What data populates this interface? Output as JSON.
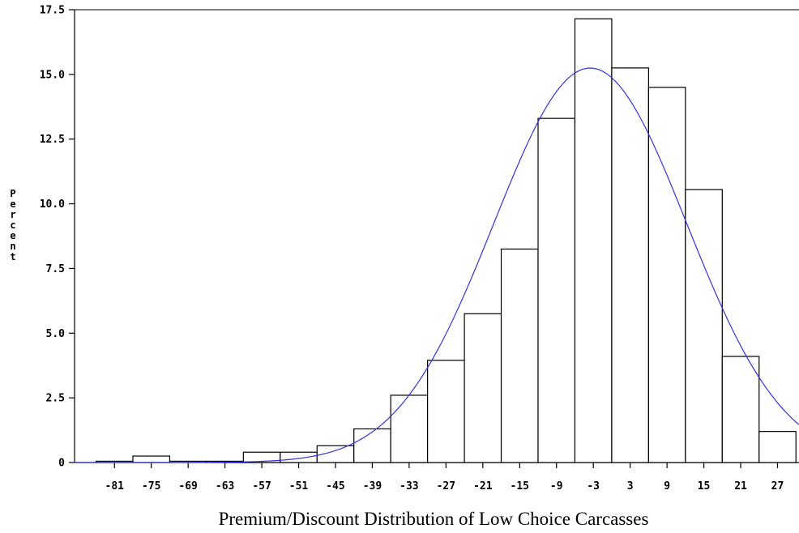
{
  "chart_data": {
    "type": "bar",
    "title": "",
    "xlabel": "Premium/Discount Distribution of Low Choice Carcasses",
    "ylabel": "Percent",
    "categories": [
      "-81",
      "-75",
      "-69",
      "-63",
      "-57",
      "-51",
      "-45",
      "-39",
      "-33",
      "-27",
      "-21",
      "-15",
      "-9",
      "-3",
      "3",
      "9",
      "15",
      "21",
      "27"
    ],
    "series": [
      {
        "values": [
          0.05,
          0.25,
          0.05,
          0.05,
          0.4,
          0.4,
          0.65,
          1.3,
          2.6,
          3.95,
          5.75,
          8.25,
          13.3,
          17.15,
          15.25,
          14.5,
          10.55,
          4.1,
          1.2
        ]
      }
    ],
    "yticks": [
      "0",
      "2.5",
      "5.0",
      "7.5",
      "10.0",
      "12.5",
      "15.0",
      "17.5"
    ],
    "ylim": [
      0,
      17.5
    ],
    "xlim": [
      -87.5,
      30.5
    ],
    "bin_width": 6,
    "normal_curve": {
      "mean": -3.5,
      "sd": 15.7,
      "color": "#3333dd"
    },
    "grid": false,
    "legend": "none"
  }
}
